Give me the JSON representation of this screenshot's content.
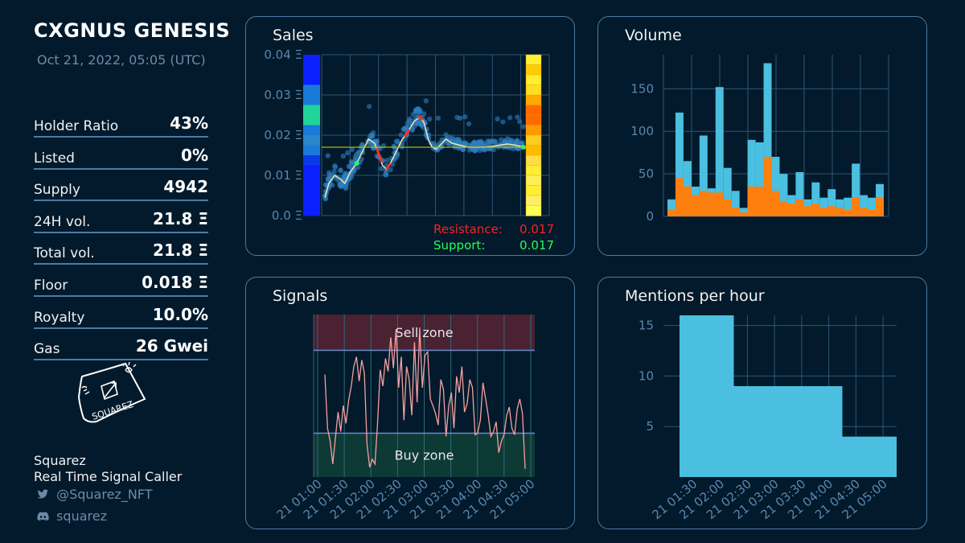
{
  "header": {
    "title": "CXGNUS GENESIS",
    "date": "Oct 21, 2022, 05:05 (UTC)"
  },
  "stats": [
    {
      "label": "Holder Ratio",
      "value": "43%"
    },
    {
      "label": "Listed",
      "value": "0%"
    },
    {
      "label": "Supply",
      "value": "4942"
    },
    {
      "label": "24H vol.",
      "value": "21.8 Ξ"
    },
    {
      "label": "Total vol.",
      "value": "21.8 Ξ"
    },
    {
      "label": "Floor",
      "value": "0.018 Ξ"
    },
    {
      "label": "Royalty",
      "value": "10.0%"
    },
    {
      "label": "Gas",
      "value": "26 Gwei"
    }
  ],
  "logo": {
    "text": "SQUAREZ"
  },
  "brand": {
    "name": "Squarez",
    "tagline": "Real Time Signal Caller",
    "twitter": "@Squarez_NFT",
    "discord": "squarez"
  },
  "icons": [
    "twitter-icon",
    "discord-icon"
  ],
  "colors": {
    "background": "#021a2b",
    "panel_border": "#4c7aa3",
    "volume_blue": "#4bbfe0",
    "volume_orange": "#ff7f0e",
    "signal_line": "#f4a0a0",
    "resistance": "#ff2020",
    "support": "#22ff55"
  },
  "chart_data": [
    {
      "type": "scatter",
      "title": "Sales",
      "yticks": [
        "0.0 Ξ",
        "0.01 Ξ",
        "0.02 Ξ",
        "0.03 Ξ",
        "0.04 Ξ"
      ],
      "ylim": [
        0,
        0.04
      ],
      "annotations": {
        "resistance_label": "Resistance:",
        "resistance_value": "0.017",
        "support_label": "Support:",
        "support_value": "0.017"
      },
      "resistance": 0.017,
      "support": 0.017,
      "trend": [
        [
          0,
          0.0045
        ],
        [
          0.02,
          0.008
        ],
        [
          0.05,
          0.01
        ],
        [
          0.08,
          0.009
        ],
        [
          0.1,
          0.008
        ],
        [
          0.13,
          0.011
        ],
        [
          0.16,
          0.013
        ],
        [
          0.19,
          0.016
        ],
        [
          0.22,
          0.019
        ],
        [
          0.25,
          0.018
        ],
        [
          0.27,
          0.0155
        ],
        [
          0.29,
          0.0125
        ],
        [
          0.31,
          0.0115
        ],
        [
          0.33,
          0.013
        ],
        [
          0.36,
          0.016
        ],
        [
          0.39,
          0.019
        ],
        [
          0.42,
          0.021
        ],
        [
          0.45,
          0.0235
        ],
        [
          0.48,
          0.0245
        ],
        [
          0.5,
          0.023
        ],
        [
          0.52,
          0.019
        ],
        [
          0.54,
          0.017
        ],
        [
          0.56,
          0.0165
        ],
        [
          0.58,
          0.0175
        ],
        [
          0.61,
          0.019
        ],
        [
          0.64,
          0.018
        ],
        [
          0.68,
          0.0175
        ],
        [
          0.72,
          0.017
        ],
        [
          0.76,
          0.017
        ],
        [
          0.8,
          0.017
        ],
        [
          0.84,
          0.0172
        ],
        [
          0.88,
          0.0175
        ],
        [
          0.92,
          0.0178
        ],
        [
          0.96,
          0.0175
        ],
        [
          1,
          0.017
        ]
      ]
    },
    {
      "type": "bar",
      "title": "Volume",
      "yticks": [
        "0",
        "50",
        "100",
        "150"
      ],
      "ylim": [
        0,
        190
      ],
      "series": [
        {
          "name": "",
          "values": [
            20,
            122,
            65,
            35,
            95,
            33,
            152,
            57,
            30,
            10,
            90,
            87,
            180,
            70,
            50,
            25,
            52,
            20,
            40,
            22,
            32,
            20,
            22,
            62,
            25,
            22,
            38
          ]
        },
        {
          "name": "",
          "values": [
            8,
            45,
            35,
            25,
            30,
            28,
            28,
            20,
            10,
            5,
            35,
            35,
            70,
            30,
            18,
            15,
            20,
            12,
            15,
            10,
            12,
            10,
            8,
            22,
            10,
            8,
            22
          ]
        }
      ]
    },
    {
      "type": "line",
      "title": "Signals",
      "zones": {
        "sell": "Sell zone",
        "buy": "Buy zone"
      },
      "xticks": [
        "21 01:00",
        "21 01:30",
        "21 02:00",
        "21 02:30",
        "21 03:00",
        "21 03:30",
        "21 04:00",
        "21 04:30",
        "21 05:00"
      ],
      "ylim": [
        0,
        100
      ],
      "sell_threshold": 78,
      "buy_threshold": 27,
      "values": [
        63,
        30,
        22,
        8,
        24,
        40,
        28,
        44,
        33,
        47,
        56,
        68,
        74,
        59,
        72,
        64,
        20,
        6,
        11,
        8,
        33,
        66,
        56,
        73,
        65,
        86,
        67,
        91,
        55,
        74,
        35,
        68,
        60,
        38,
        83,
        46,
        92,
        55,
        75,
        77,
        48,
        44,
        39,
        32,
        60,
        54,
        25,
        44,
        52,
        30,
        62,
        52,
        68,
        40,
        45,
        60,
        55,
        26,
        27,
        35,
        58,
        48,
        38,
        25,
        28,
        34,
        15,
        22,
        26,
        38,
        43,
        30,
        26,
        42,
        48,
        39,
        5
      ]
    },
    {
      "type": "area",
      "title": "Mentions per hour",
      "yticks": [
        "5",
        "10",
        "15"
      ],
      "xticks": [
        "21 01:30",
        "21 02:00",
        "21 02:30",
        "21 03:00",
        "21 03:30",
        "21 04:00",
        "21 04:30",
        "21 05:00"
      ],
      "ylim": [
        0,
        16
      ],
      "values": [
        16,
        9,
        9,
        4
      ]
    }
  ]
}
